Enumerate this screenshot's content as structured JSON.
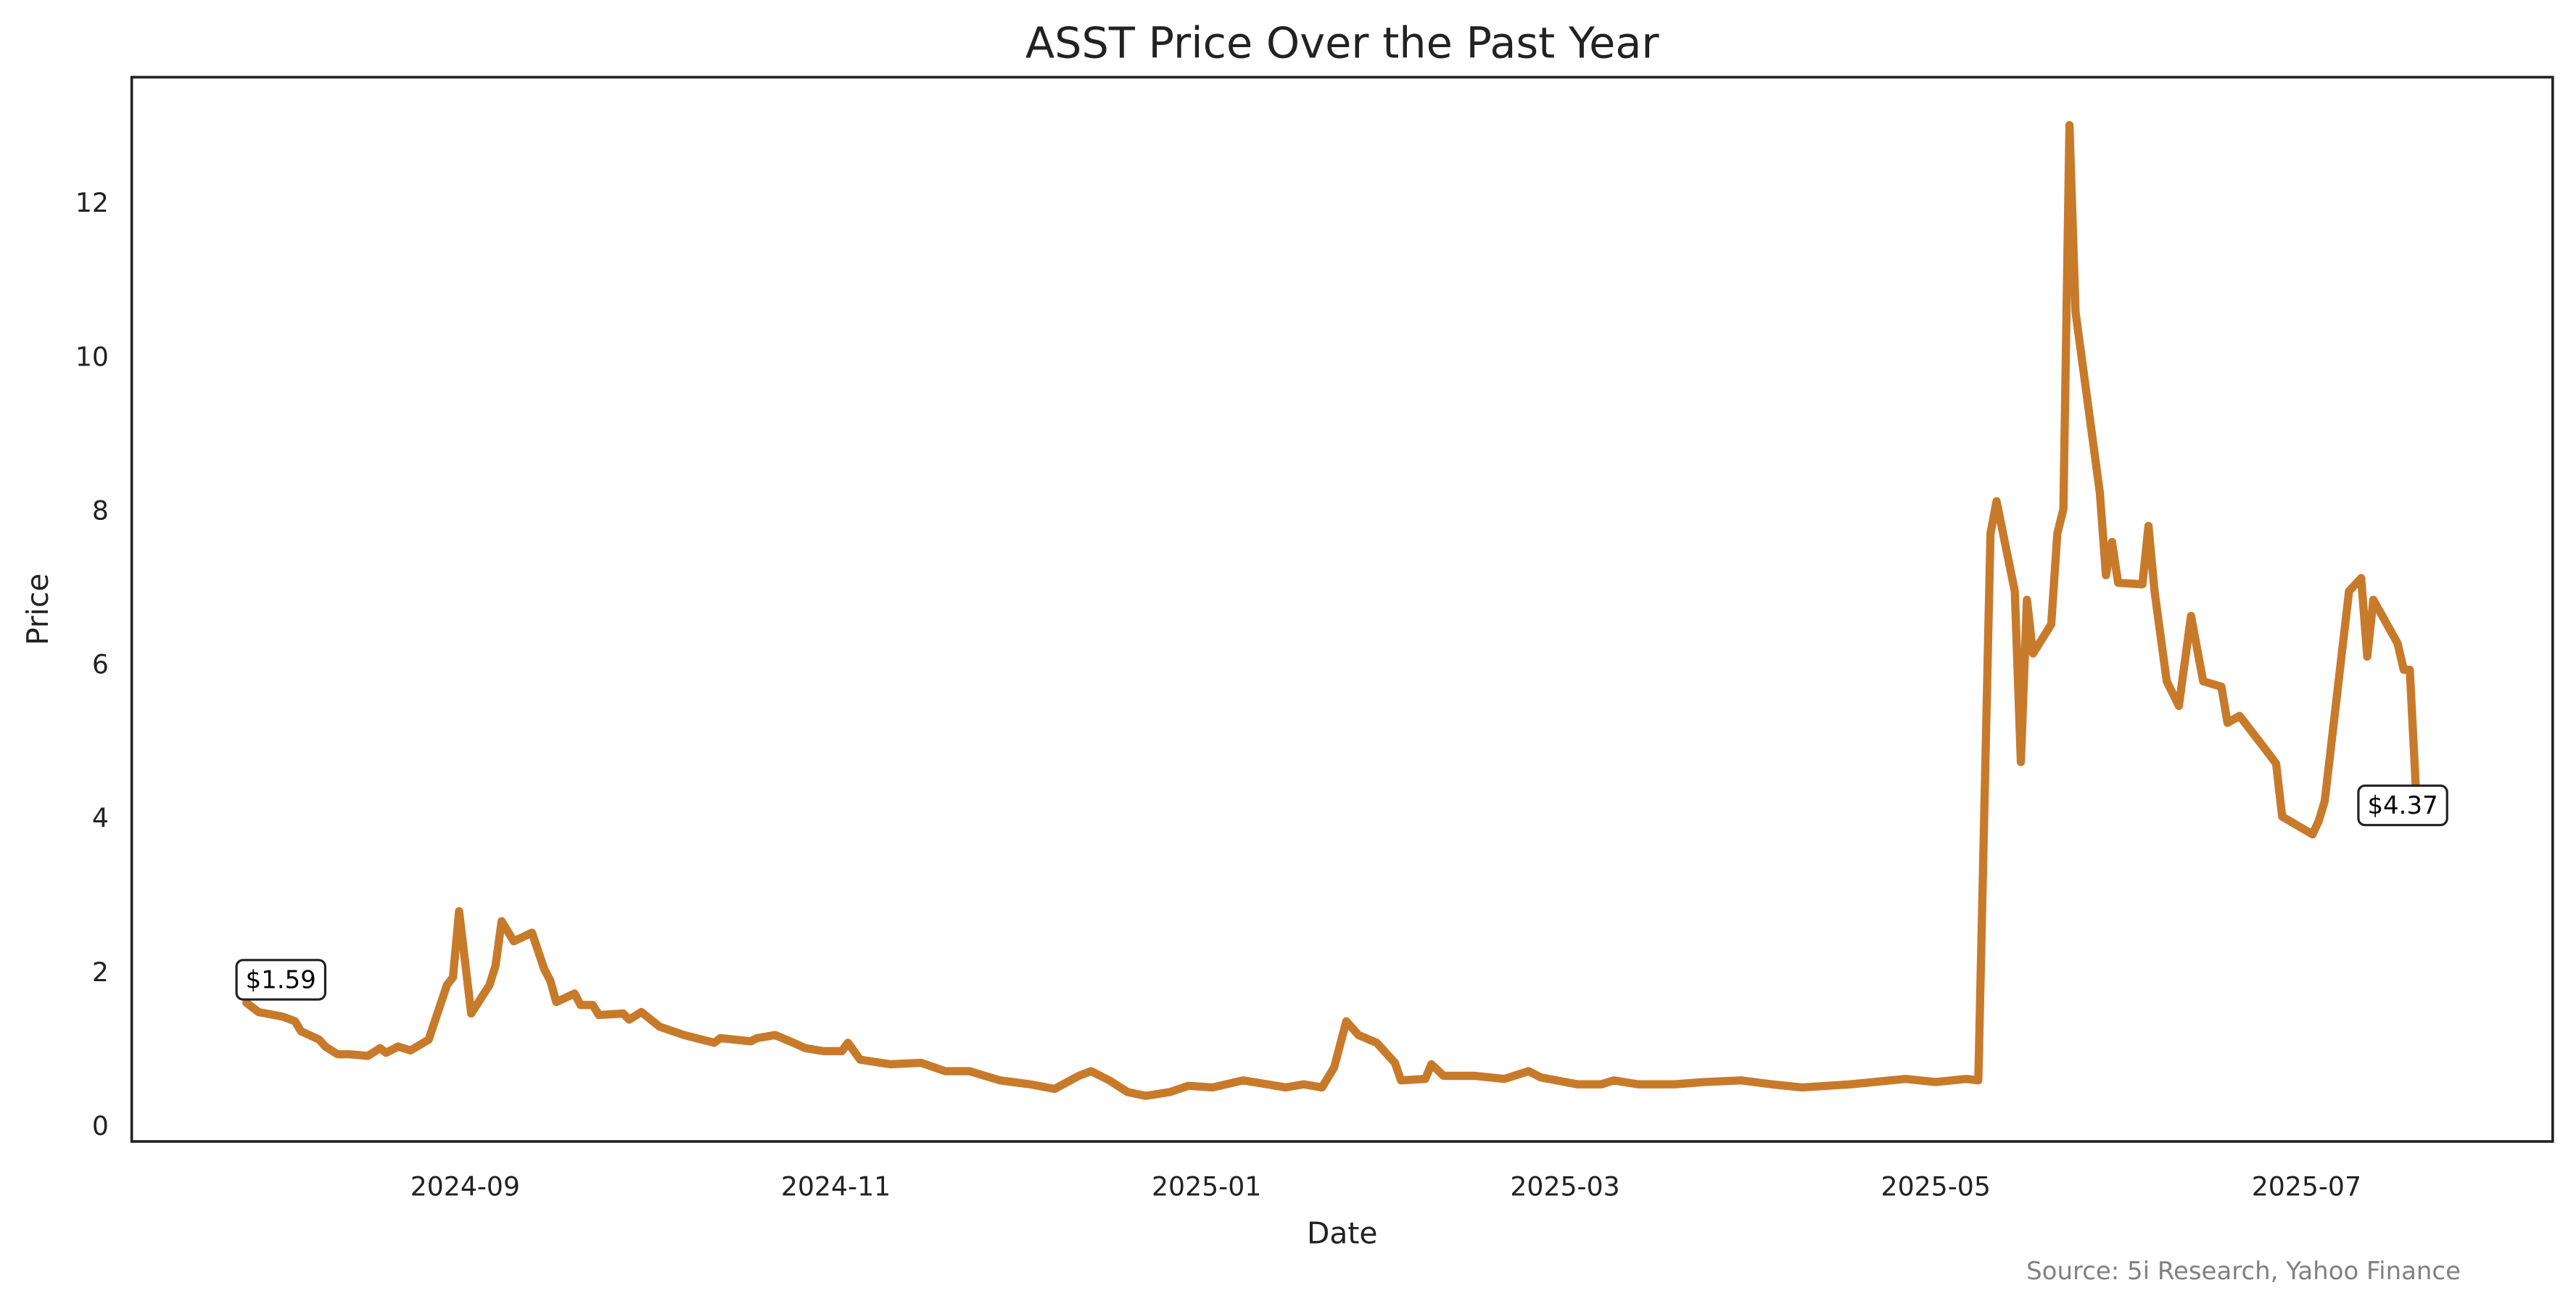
{
  "chart_data": {
    "type": "line",
    "title": "ASST Price Over the Past Year",
    "xlabel": "Date",
    "ylabel": "Price",
    "ylim": [
      -0.2,
      13.6
    ],
    "xlim": [
      "2024-07-12",
      "2025-08-08"
    ],
    "yticks": [
      0,
      2,
      4,
      6,
      8,
      10,
      12
    ],
    "xticks": [
      "2024-09",
      "2024-11",
      "2025-01",
      "2025-03",
      "2025-05",
      "2025-07"
    ],
    "grid": false,
    "line_color": "#c87a2b",
    "source": "Source: 5i Research, Yahoo Finance",
    "annotations": [
      {
        "date": "2024-07-27",
        "value": 1.59,
        "label": "$1.59"
      },
      {
        "date": "2025-07-19",
        "value": 4.37,
        "label": "$4.37"
      }
    ],
    "series": [
      {
        "name": "ASST",
        "points": [
          [
            "2024-07-27",
            1.59
          ],
          [
            "2024-07-29",
            1.47
          ],
          [
            "2024-08-02",
            1.41
          ],
          [
            "2024-08-04",
            1.35
          ],
          [
            "2024-08-05",
            1.22
          ],
          [
            "2024-08-08",
            1.11
          ],
          [
            "2024-08-09",
            1.02
          ],
          [
            "2024-08-11",
            0.92
          ],
          [
            "2024-08-13",
            0.92
          ],
          [
            "2024-08-16",
            0.9
          ],
          [
            "2024-08-18",
            1.0
          ],
          [
            "2024-08-19",
            0.94
          ],
          [
            "2024-08-21",
            1.02
          ],
          [
            "2024-08-23",
            0.97
          ],
          [
            "2024-08-26",
            1.11
          ],
          [
            "2024-08-29",
            1.82
          ],
          [
            "2024-08-30",
            1.92
          ],
          [
            "2024-08-31",
            2.78
          ],
          [
            "2024-09-02",
            1.45
          ],
          [
            "2024-09-05",
            1.82
          ],
          [
            "2024-09-06",
            2.07
          ],
          [
            "2024-09-07",
            2.65
          ],
          [
            "2024-09-09",
            2.39
          ],
          [
            "2024-09-12",
            2.5
          ],
          [
            "2024-09-14",
            2.03
          ],
          [
            "2024-09-15",
            1.88
          ],
          [
            "2024-09-16",
            1.6
          ],
          [
            "2024-09-19",
            1.71
          ],
          [
            "2024-09-20",
            1.56
          ],
          [
            "2024-09-22",
            1.56
          ],
          [
            "2024-09-23",
            1.43
          ],
          [
            "2024-09-27",
            1.45
          ],
          [
            "2024-09-28",
            1.37
          ],
          [
            "2024-09-30",
            1.47
          ],
          [
            "2024-10-03",
            1.28
          ],
          [
            "2024-10-07",
            1.17
          ],
          [
            "2024-10-10",
            1.11
          ],
          [
            "2024-10-12",
            1.07
          ],
          [
            "2024-10-13",
            1.13
          ],
          [
            "2024-10-18",
            1.09
          ],
          [
            "2024-10-19",
            1.13
          ],
          [
            "2024-10-22",
            1.17
          ],
          [
            "2024-10-25",
            1.07
          ],
          [
            "2024-10-27",
            1.0
          ],
          [
            "2024-10-30",
            0.96
          ],
          [
            "2024-11-02",
            0.96
          ],
          [
            "2024-11-03",
            1.07
          ],
          [
            "2024-11-05",
            0.85
          ],
          [
            "2024-11-10",
            0.79
          ],
          [
            "2024-11-15",
            0.81
          ],
          [
            "2024-11-19",
            0.7
          ],
          [
            "2024-11-23",
            0.7
          ],
          [
            "2024-11-28",
            0.58
          ],
          [
            "2024-12-03",
            0.53
          ],
          [
            "2024-12-07",
            0.47
          ],
          [
            "2024-12-11",
            0.64
          ],
          [
            "2024-12-13",
            0.7
          ],
          [
            "2024-12-16",
            0.58
          ],
          [
            "2024-12-19",
            0.43
          ],
          [
            "2024-12-22",
            0.38
          ],
          [
            "2024-12-26",
            0.43
          ],
          [
            "2024-12-29",
            0.51
          ],
          [
            "2025-01-02",
            0.49
          ],
          [
            "2025-01-07",
            0.58
          ],
          [
            "2025-01-11",
            0.53
          ],
          [
            "2025-01-14",
            0.49
          ],
          [
            "2025-01-17",
            0.53
          ],
          [
            "2025-01-20",
            0.49
          ],
          [
            "2025-01-22",
            0.75
          ],
          [
            "2025-01-24",
            1.35
          ],
          [
            "2025-01-26",
            1.17
          ],
          [
            "2025-01-29",
            1.07
          ],
          [
            "2025-02-01",
            0.81
          ],
          [
            "2025-02-02",
            0.58
          ],
          [
            "2025-02-06",
            0.6
          ],
          [
            "2025-02-07",
            0.79
          ],
          [
            "2025-02-09",
            0.64
          ],
          [
            "2025-02-14",
            0.64
          ],
          [
            "2025-02-19",
            0.6
          ],
          [
            "2025-02-23",
            0.7
          ],
          [
            "2025-02-25",
            0.62
          ],
          [
            "2025-03-03",
            0.53
          ],
          [
            "2025-03-07",
            0.53
          ],
          [
            "2025-03-09",
            0.58
          ],
          [
            "2025-03-13",
            0.53
          ],
          [
            "2025-03-19",
            0.53
          ],
          [
            "2025-03-24",
            0.56
          ],
          [
            "2025-03-30",
            0.58
          ],
          [
            "2025-04-04",
            0.53
          ],
          [
            "2025-04-09",
            0.49
          ],
          [
            "2025-04-17",
            0.53
          ],
          [
            "2025-04-26",
            0.6
          ],
          [
            "2025-05-01",
            0.56
          ],
          [
            "2025-05-06",
            0.6
          ],
          [
            "2025-05-08",
            0.58
          ],
          [
            "2025-05-10",
            7.69
          ],
          [
            "2025-05-11",
            8.11
          ],
          [
            "2025-05-14",
            6.94
          ],
          [
            "2025-05-15",
            4.72
          ],
          [
            "2025-05-16",
            6.83
          ],
          [
            "2025-05-17",
            6.13
          ],
          [
            "2025-05-20",
            6.51
          ],
          [
            "2025-05-21",
            7.69
          ],
          [
            "2025-05-22",
            8.01
          ],
          [
            "2025-05-23",
            13.0
          ],
          [
            "2025-05-24",
            10.57
          ],
          [
            "2025-05-28",
            8.22
          ],
          [
            "2025-05-29",
            7.15
          ],
          [
            "2025-05-30",
            7.58
          ],
          [
            "2025-05-31",
            7.05
          ],
          [
            "2025-06-04",
            7.03
          ],
          [
            "2025-06-05",
            7.79
          ],
          [
            "2025-06-06",
            6.94
          ],
          [
            "2025-06-08",
            5.77
          ],
          [
            "2025-06-10",
            5.45
          ],
          [
            "2025-06-12",
            6.62
          ],
          [
            "2025-06-14",
            5.77
          ],
          [
            "2025-06-17",
            5.7
          ],
          [
            "2025-06-18",
            5.23
          ],
          [
            "2025-06-20",
            5.32
          ],
          [
            "2025-06-24",
            4.91
          ],
          [
            "2025-06-26",
            4.7
          ],
          [
            "2025-06-27",
            4.01
          ],
          [
            "2025-07-02",
            3.78
          ],
          [
            "2025-07-03",
            3.95
          ],
          [
            "2025-07-04",
            4.21
          ],
          [
            "2025-07-08",
            6.94
          ],
          [
            "2025-07-10",
            7.11
          ],
          [
            "2025-07-11",
            6.09
          ],
          [
            "2025-07-12",
            6.83
          ],
          [
            "2025-07-16",
            6.26
          ],
          [
            "2025-07-17",
            5.92
          ],
          [
            "2025-07-18",
            5.92
          ],
          [
            "2025-07-19",
            4.37
          ]
        ]
      }
    ]
  }
}
